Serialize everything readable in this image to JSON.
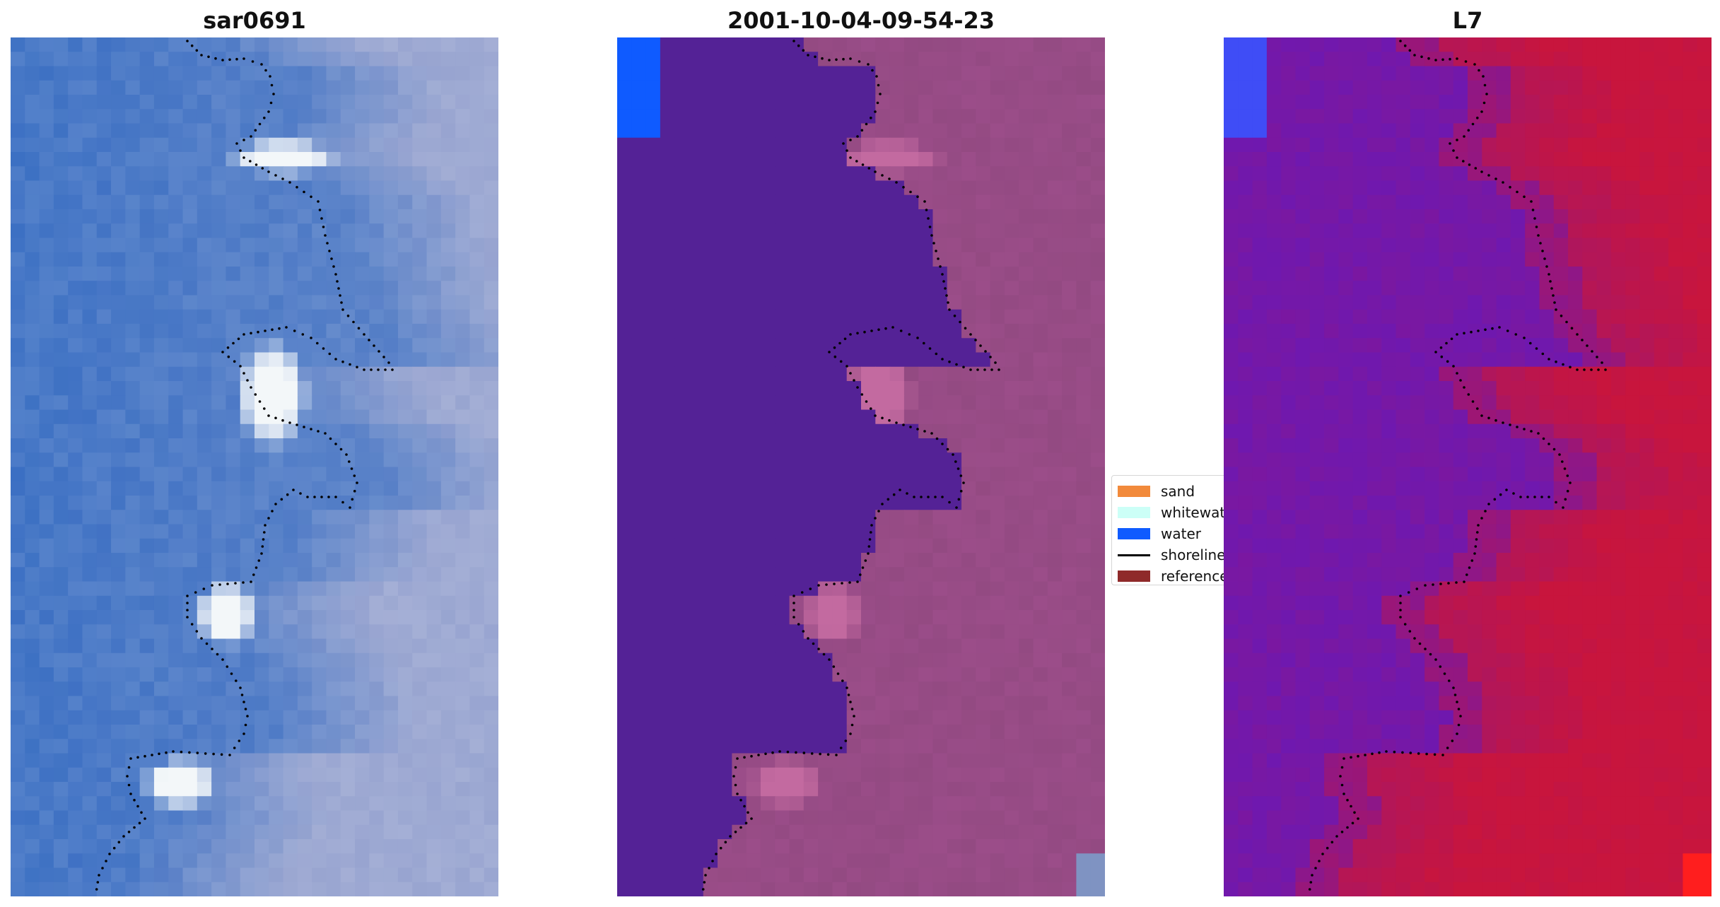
{
  "panels": [
    {
      "title": "sar0691",
      "layer": "rgb-image"
    },
    {
      "title": "2001-10-04-09-54-23",
      "layer": "classified-image"
    },
    {
      "title": "L7",
      "layer": "index-image"
    }
  ],
  "legend": {
    "items": [
      {
        "label": "sand",
        "color": "#f28a3b",
        "kind": "patch"
      },
      {
        "label": "whitewater",
        "color": "#ccfff7",
        "kind": "patch"
      },
      {
        "label": "water",
        "color": "#0f5bff",
        "kind": "patch"
      },
      {
        "label": "shoreline",
        "color": "#000000",
        "kind": "line"
      },
      {
        "label": "reference shoreline",
        "color": "#8f2a2a",
        "kind": "patch"
      }
    ]
  },
  "colors": {
    "rgb_water": "#3f72c4",
    "rgb_land": "#9aa6d1",
    "rgb_whitewater": "#f3f7f9",
    "class_water_body": "#542296",
    "class_land": "#934a82",
    "class_bright": "#c36aa0",
    "class_water": "#0f5bff",
    "index_low": "#6a18b5",
    "index_high": "#c8153d",
    "index_corner_blue": "#3f4df6",
    "index_corner_red": "#ff1e1e",
    "shoreline_dots": "#000000"
  }
}
